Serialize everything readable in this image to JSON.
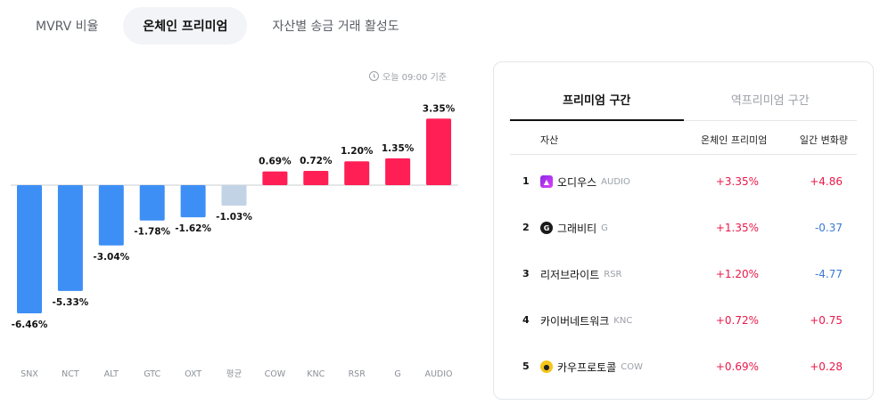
{
  "tabs": [
    {
      "label": "MVRV 비율",
      "active": false
    },
    {
      "label": "온체인 프리미엄",
      "active": true
    },
    {
      "label": "자산별 송금 거래 활성도",
      "active": false
    }
  ],
  "timestamp": "오늘 09:00 기준",
  "chart_data": {
    "type": "bar",
    "categories": [
      "SNX",
      "NCT",
      "ALT",
      "GTC",
      "OXT",
      "평균",
      "COW",
      "KNC",
      "RSR",
      "G",
      "AUDIO"
    ],
    "values": [
      -6.46,
      -5.33,
      -3.04,
      -1.78,
      -1.62,
      -1.03,
      0.69,
      0.72,
      1.2,
      1.35,
      3.35
    ],
    "value_labels": [
      "-6.46%",
      "-5.33%",
      "-3.04%",
      "-1.78%",
      "-1.62%",
      "-1.03%",
      "0.69%",
      "0.72%",
      "1.20%",
      "1.35%",
      "3.35%"
    ],
    "colors": {
      "negative": "#3d8ff5",
      "positive": "#ff1f55",
      "average": "#c2d3e6"
    },
    "ylim": [
      -6.6,
      3.5
    ],
    "title": "",
    "xlabel": "",
    "ylabel": ""
  },
  "panel": {
    "tabs": [
      {
        "label": "프리미엄 구간",
        "active": true
      },
      {
        "label": "역프리미엄 구간",
        "active": false
      }
    ],
    "headers": {
      "asset": "자산",
      "premium": "온체인 프리미엄",
      "change": "일간 변화량"
    },
    "rows": [
      {
        "rank": "1",
        "name": "오디우스",
        "ticker": "AUDIO",
        "icon": "audio-coin-icon",
        "premium": "+3.35%",
        "change": "+4.86",
        "dir": "up"
      },
      {
        "rank": "2",
        "name": "그래비티",
        "ticker": "G",
        "icon": "gravity-coin-icon",
        "premium": "+1.35%",
        "change": "-0.37",
        "dir": "down"
      },
      {
        "rank": "3",
        "name": "리저브라이트",
        "ticker": "RSR",
        "icon": "",
        "premium": "+1.20%",
        "change": "-4.77",
        "dir": "down"
      },
      {
        "rank": "4",
        "name": "카이버네트워크",
        "ticker": "KNC",
        "icon": "",
        "premium": "+0.72%",
        "change": "+0.75",
        "dir": "up"
      },
      {
        "rank": "5",
        "name": "카우프로토콜",
        "ticker": "COW",
        "icon": "cow-coin-icon",
        "premium": "+0.69%",
        "change": "+0.28",
        "dir": "up"
      }
    ]
  }
}
